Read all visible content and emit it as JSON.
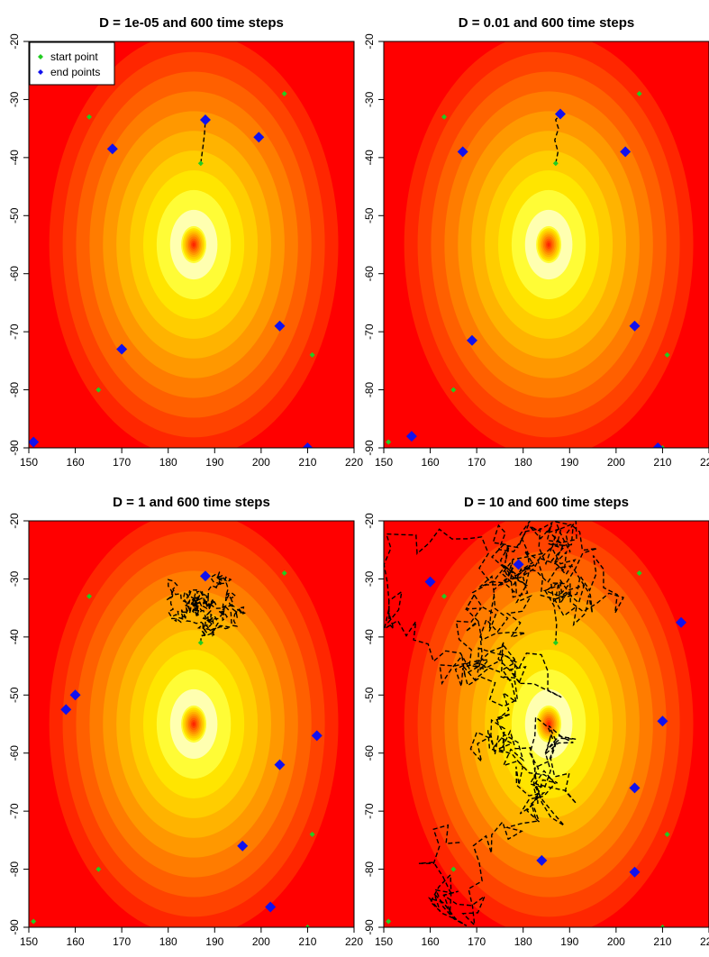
{
  "chart_data": [
    {
      "type": "scatter",
      "title": "D = 1e-05 and 600 time steps",
      "xlim": [
        150,
        220
      ],
      "ylim": [
        -90,
        -20
      ],
      "xticks": [
        150,
        160,
        170,
        180,
        190,
        200,
        210,
        220
      ],
      "yticks": [
        -20,
        -30,
        -40,
        -50,
        -60,
        -70,
        -80,
        -90
      ],
      "legend": [
        "start point",
        "end points"
      ],
      "legend_position": "top-left",
      "colors": {
        "start": "#22cc22",
        "end": "#1111ee",
        "path": "#000000"
      },
      "start_points": [
        [
          163,
          -33
        ],
        [
          187,
          -41
        ],
        [
          205,
          -29
        ],
        [
          211,
          -74
        ],
        [
          165,
          -80
        ],
        [
          151,
          -89
        ],
        [
          210,
          -90
        ]
      ],
      "end_points": [
        [
          168,
          -38.5
        ],
        [
          188,
          -33.5
        ],
        [
          199.5,
          -36.5
        ],
        [
          204,
          -69
        ],
        [
          170,
          -73
        ],
        [
          151,
          -89
        ],
        [
          210,
          -90
        ]
      ],
      "trajectories": [
        [
          [
            187,
            -41
          ],
          [
            187.5,
            -38
          ],
          [
            187.8,
            -36
          ],
          [
            188,
            -33.5
          ]
        ]
      ]
    },
    {
      "type": "scatter",
      "title": "D = 0.01 and 600 time steps",
      "xlim": [
        150,
        220
      ],
      "ylim": [
        -90,
        -20
      ],
      "xticks": [
        150,
        160,
        170,
        180,
        190,
        200,
        210,
        220
      ],
      "yticks": [
        -20,
        -30,
        -40,
        -50,
        -60,
        -70,
        -80,
        -90
      ],
      "colors": {
        "start": "#22cc22",
        "end": "#1111ee",
        "path": "#000000"
      },
      "start_points": [
        [
          163,
          -33
        ],
        [
          187,
          -41
        ],
        [
          205,
          -29
        ],
        [
          211,
          -74
        ],
        [
          165,
          -80
        ],
        [
          151,
          -89
        ],
        [
          210,
          -90
        ]
      ],
      "end_points": [
        [
          167,
          -39
        ],
        [
          188,
          -32.5
        ],
        [
          202,
          -39
        ],
        [
          204,
          -69
        ],
        [
          169,
          -71.5
        ],
        [
          156,
          -88
        ],
        [
          209,
          -90
        ]
      ],
      "trajectories": [
        [
          [
            187,
            -41
          ],
          [
            187.5,
            -39
          ],
          [
            186.8,
            -37
          ],
          [
            187.6,
            -35
          ],
          [
            187,
            -33.5
          ],
          [
            188,
            -32.5
          ]
        ]
      ]
    },
    {
      "type": "scatter",
      "title": "D = 1 and 600 time steps",
      "xlim": [
        150,
        220
      ],
      "ylim": [
        -90,
        -20
      ],
      "xticks": [
        150,
        160,
        170,
        180,
        190,
        200,
        210,
        220
      ],
      "yticks": [
        -20,
        -30,
        -40,
        -50,
        -60,
        -70,
        -80,
        -90
      ],
      "colors": {
        "start": "#22cc22",
        "end": "#1111ee",
        "path": "#000000"
      },
      "start_points": [
        [
          163,
          -33
        ],
        [
          187,
          -41
        ],
        [
          205,
          -29
        ],
        [
          211,
          -74
        ],
        [
          165,
          -80
        ],
        [
          151,
          -89
        ],
        [
          210,
          -90
        ]
      ],
      "end_points": [
        [
          158,
          -52.5
        ],
        [
          160,
          -50
        ],
        [
          188,
          -29.5
        ],
        [
          212,
          -57
        ],
        [
          204,
          -62
        ],
        [
          196,
          -76
        ],
        [
          202,
          -86.5
        ]
      ],
      "walk": {
        "start": [
          187,
          -41
        ],
        "steps": 260,
        "step_size": 1.1,
        "xrange": [
          167,
          197
        ],
        "yrange": [
          -40,
          -22
        ],
        "seed": 7
      }
    },
    {
      "type": "scatter",
      "title": "D = 10 and 600 time steps",
      "xlim": [
        150,
        220
      ],
      "ylim": [
        -90,
        -20
      ],
      "xticks": [
        150,
        160,
        170,
        180,
        190,
        200,
        210,
        220
      ],
      "yticks": [
        -20,
        -30,
        -40,
        -50,
        -60,
        -70,
        -80,
        -90
      ],
      "colors": {
        "start": "#22cc22",
        "end": "#1111ee",
        "path": "#000000"
      },
      "start_points": [
        [
          163,
          -33
        ],
        [
          187,
          -41
        ],
        [
          205,
          -29
        ],
        [
          211,
          -74
        ],
        [
          165,
          -80
        ],
        [
          151,
          -89
        ],
        [
          210,
          -90
        ]
      ],
      "end_points": [
        [
          160,
          -30.5
        ],
        [
          179,
          -27.5
        ],
        [
          214,
          -37.5
        ],
        [
          210,
          -54.5
        ],
        [
          204,
          -66
        ],
        [
          184,
          -78.5
        ],
        [
          204,
          -80.5
        ]
      ],
      "walk": {
        "start": [
          187,
          -41
        ],
        "steps": 420,
        "step_size": 3.2,
        "xrange": [
          150,
          220
        ],
        "yrange": [
          -90,
          -20
        ],
        "seed": 11
      }
    }
  ]
}
